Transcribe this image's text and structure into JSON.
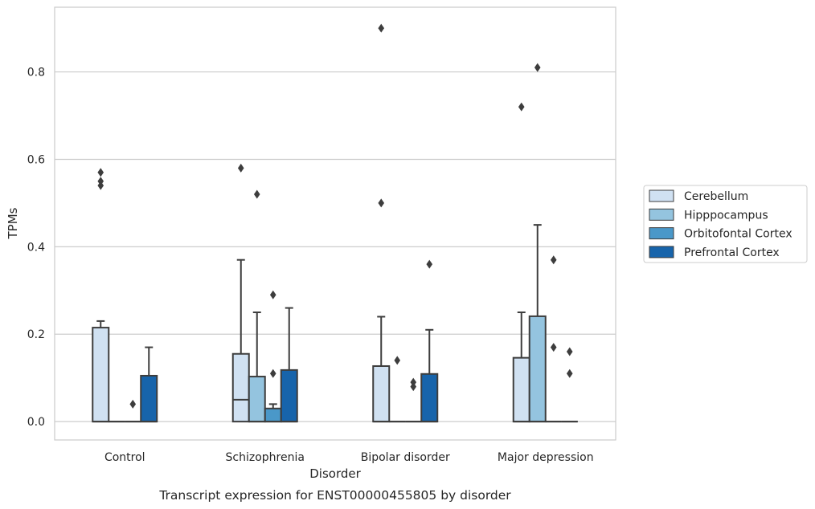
{
  "chart_data": {
    "type": "box",
    "caption": "Transcript expression for ENST00000455805 by disorder",
    "xlabel": "Disorder",
    "ylabel": "TPMs",
    "ylim": [
      -0.042,
      0.948
    ],
    "yticks": [
      0.0,
      0.2,
      0.4,
      0.6,
      0.8
    ],
    "ytick_labels": [
      "0.0",
      "0.2",
      "0.4",
      "0.6",
      "0.8"
    ],
    "grid": "horizontal",
    "legend_position": "right",
    "categories": [
      "Control",
      "Schizophrenia",
      "Bipolar disorder",
      "Major depression"
    ],
    "series": [
      {
        "name": "Cerebellum",
        "color": "#d0e1f2",
        "boxes": [
          {
            "min": 0.0,
            "q1": 0.0,
            "median": 0.0,
            "q3": 0.215,
            "max": 0.23,
            "outliers": [
              0.57,
              0.55,
              0.54
            ]
          },
          {
            "min": 0.0,
            "q1": 0.0,
            "median": 0.05,
            "q3": 0.155,
            "max": 0.37,
            "outliers": [
              0.58
            ]
          },
          {
            "min": 0.0,
            "q1": 0.0,
            "median": 0.0,
            "q3": 0.127,
            "max": 0.24,
            "outliers": [
              0.5,
              0.9
            ]
          },
          {
            "min": 0.0,
            "q1": 0.0,
            "median": 0.0,
            "q3": 0.146,
            "max": 0.25,
            "outliers": [
              0.72
            ]
          }
        ]
      },
      {
        "name": "Hipppocampus",
        "color": "#94c4df",
        "boxes": [
          {
            "min": 0.0,
            "q1": 0.0,
            "median": 0.0,
            "q3": 0.0,
            "max": 0.0,
            "outliers": []
          },
          {
            "min": 0.0,
            "q1": 0.0,
            "median": 0.0,
            "q3": 0.103,
            "max": 0.25,
            "outliers": [
              0.52
            ]
          },
          {
            "min": 0.0,
            "q1": 0.0,
            "median": 0.0,
            "q3": 0.0,
            "max": 0.0,
            "outliers": [
              0.14
            ]
          },
          {
            "min": 0.0,
            "q1": 0.0,
            "median": 0.0,
            "q3": 0.241,
            "max": 0.45,
            "outliers": [
              0.81
            ]
          }
        ]
      },
      {
        "name": "Orbitofontal Cortex",
        "color": "#4a98c9",
        "boxes": [
          {
            "min": 0.0,
            "q1": 0.0,
            "median": 0.0,
            "q3": 0.0,
            "max": 0.0,
            "outliers": [
              0.04
            ]
          },
          {
            "min": 0.0,
            "q1": 0.0,
            "median": 0.0,
            "q3": 0.03,
            "max": 0.04,
            "outliers": [
              0.29,
              0.11
            ]
          },
          {
            "min": 0.0,
            "q1": 0.0,
            "median": 0.0,
            "q3": 0.0,
            "max": 0.0,
            "outliers": [
              0.09,
              0.08
            ]
          },
          {
            "min": 0.0,
            "q1": 0.0,
            "median": 0.0,
            "q3": 0.0,
            "max": 0.0,
            "outliers": [
              0.37,
              0.17
            ]
          }
        ]
      },
      {
        "name": "Prefrontal Cortex",
        "color": "#1764ab",
        "boxes": [
          {
            "min": 0.0,
            "q1": 0.0,
            "median": 0.0,
            "q3": 0.105,
            "max": 0.17,
            "outliers": []
          },
          {
            "min": 0.0,
            "q1": 0.0,
            "median": 0.0,
            "q3": 0.118,
            "max": 0.26,
            "outliers": []
          },
          {
            "min": 0.0,
            "q1": 0.0,
            "median": 0.0,
            "q3": 0.109,
            "max": 0.21,
            "outliers": [
              0.36
            ]
          },
          {
            "min": 0.0,
            "q1": 0.0,
            "median": 0.0,
            "q3": 0.0,
            "max": 0.0,
            "outliers": [
              0.16,
              0.11
            ]
          }
        ]
      }
    ]
  }
}
